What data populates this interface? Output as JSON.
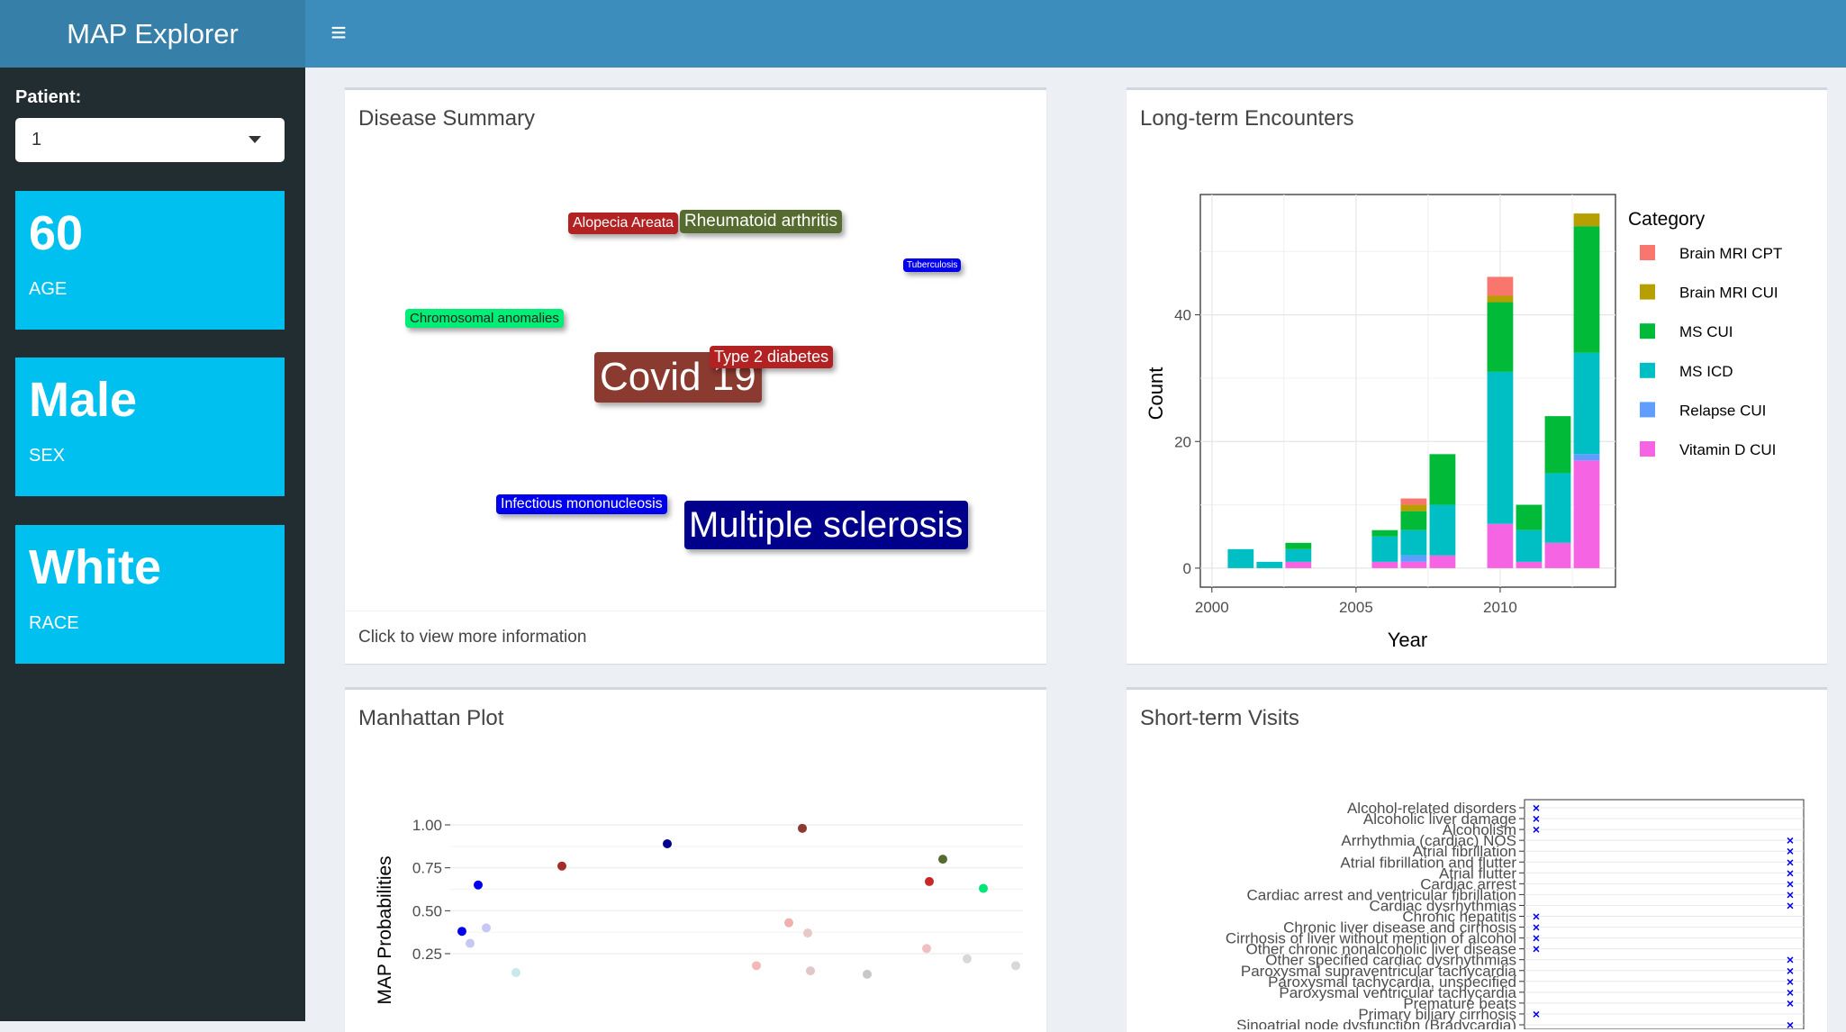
{
  "app": {
    "title": "MAP Explorer"
  },
  "sidebar": {
    "patient_label": "Patient:",
    "patient_value": "1",
    "infoboxes": [
      {
        "value": "60",
        "label": "AGE"
      },
      {
        "value": "Male",
        "label": "SEX"
      },
      {
        "value": "White",
        "label": "RACE"
      }
    ]
  },
  "disease_summary": {
    "title": "Disease Summary",
    "footer": "Click to view more information",
    "labels": [
      {
        "text": "Alopecia Areata",
        "color": "#b22222"
      },
      {
        "text": "Rheumatoid arthritis",
        "color": "#556b2f"
      },
      {
        "text": "Tuberculosis",
        "color": "#0000ee"
      },
      {
        "text": "Chromosomal anomalies",
        "color": "#00ee76"
      },
      {
        "text": "Covid 19",
        "color": "#8b3a2f"
      },
      {
        "text": "Type 2 diabetes",
        "color": "#b22222"
      },
      {
        "text": "Infectious mononucleosis",
        "color": "#0000ee"
      },
      {
        "text": "Multiple sclerosis",
        "color": "#00008b"
      }
    ]
  },
  "long_term": {
    "title": "Long-term Encounters",
    "chart_data": {
      "type": "bar",
      "stacked": true,
      "xlabel": "Year",
      "ylabel": "Count",
      "xlim": [
        1999.6,
        2014
      ],
      "ylim": [
        -3,
        59
      ],
      "x_ticks": [
        "2000",
        "2005",
        "2010"
      ],
      "y_ticks": [
        "0",
        "20",
        "40"
      ],
      "grid": true,
      "legend": {
        "title": "Category",
        "position": "right"
      },
      "series": [
        {
          "name": "Brain MRI CPT",
          "color": "#f8766d",
          "points": [
            [
              2007,
              1
            ],
            [
              2010,
              3
            ]
          ]
        },
        {
          "name": "Brain MRI CUI",
          "color": "#b79f00",
          "points": [
            [
              2007,
              1
            ],
            [
              2010,
              1
            ],
            [
              2013,
              2
            ]
          ]
        },
        {
          "name": "MS CUI",
          "color": "#00ba38",
          "points": [
            [
              2003,
              1
            ],
            [
              2006,
              1
            ],
            [
              2007,
              3
            ],
            [
              2008,
              8
            ],
            [
              2010,
              11
            ],
            [
              2011,
              4
            ],
            [
              2012,
              9
            ],
            [
              2013,
              20
            ]
          ]
        },
        {
          "name": "MS ICD",
          "color": "#00bfc4",
          "points": [
            [
              2001,
              3
            ],
            [
              2002,
              1
            ],
            [
              2003,
              2
            ],
            [
              2006,
              4
            ],
            [
              2007,
              4
            ],
            [
              2008,
              8
            ],
            [
              2010,
              24
            ],
            [
              2011,
              5
            ],
            [
              2012,
              11
            ],
            [
              2013,
              16
            ]
          ]
        },
        {
          "name": "Relapse CUI",
          "color": "#619cff",
          "points": [
            [
              2007,
              1
            ],
            [
              2013,
              1
            ]
          ]
        },
        {
          "name": "Vitamin D CUI",
          "color": "#f564e3",
          "points": [
            [
              2003,
              1
            ],
            [
              2006,
              1
            ],
            [
              2007,
              1
            ],
            [
              2008,
              2
            ],
            [
              2010,
              7
            ],
            [
              2011,
              1
            ],
            [
              2012,
              4
            ],
            [
              2013,
              17
            ]
          ]
        }
      ]
    }
  },
  "manhattan": {
    "title": "Manhattan Plot",
    "chart_data": {
      "type": "scatter",
      "ylabel": "MAP Probabilities",
      "y_ticks": [
        "0.25",
        "0.50",
        "0.75",
        "1.00"
      ],
      "ylim": [
        0.15,
        1.05
      ],
      "grid": true,
      "points": [
        {
          "x": 1,
          "y": 0.38,
          "color": "#0000ee"
        },
        {
          "x": 1.6,
          "y": 0.65,
          "color": "#0000ee"
        },
        {
          "x": 1.9,
          "y": 0.4,
          "color": "#c7c7f5"
        },
        {
          "x": 1.3,
          "y": 0.31,
          "color": "#c7c7f5"
        },
        {
          "x": 3.0,
          "y": 0.14,
          "color": "#c8e8ec"
        },
        {
          "x": 4.7,
          "y": 0.76,
          "color": "#a52a2a"
        },
        {
          "x": 8.6,
          "y": 0.89,
          "color": "#00008b"
        },
        {
          "x": 11.9,
          "y": 0.18,
          "color": "#f5b8b8"
        },
        {
          "x": 13.1,
          "y": 0.43,
          "color": "#f0b0b0"
        },
        {
          "x": 13.6,
          "y": 0.98,
          "color": "#8b3a2f"
        },
        {
          "x": 13.8,
          "y": 0.37,
          "color": "#e8c8c8"
        },
        {
          "x": 13.9,
          "y": 0.15,
          "color": "#e0c8c8"
        },
        {
          "x": 16.0,
          "y": 0.13,
          "color": "#c8c8c8"
        },
        {
          "x": 18.3,
          "y": 0.67,
          "color": "#c62828"
        },
        {
          "x": 18.2,
          "y": 0.28,
          "color": "#f0c0c0"
        },
        {
          "x": 18.8,
          "y": 0.8,
          "color": "#556b2f"
        },
        {
          "x": 19.7,
          "y": 0.22,
          "color": "#d8d8d8"
        },
        {
          "x": 20.3,
          "y": 0.63,
          "color": "#00e676"
        },
        {
          "x": 21.5,
          "y": 0.18,
          "color": "#d8d8d8"
        }
      ]
    }
  },
  "short_term": {
    "title": "Short-term Visits",
    "chart_data": {
      "type": "scatter",
      "marker": "x",
      "categories": [
        "Alcohol-related disorders",
        "Alcoholic liver damage",
        "Alcoholism",
        "Arrhythmia (cardiac) NOS",
        "Atrial fibrillation",
        "Atrial fibrillation and flutter",
        "Atrial flutter",
        "Cardiac arrest",
        "Cardiac arrest and ventricular fibrillation",
        "Cardiac dysrhythmias",
        "Chronic hepatitis",
        "Chronic liver disease and cirrhosis",
        "Cirrhosis of liver without mention of alcohol",
        "Other chronic nonalcoholic liver disease",
        "Other specified cardiac dysrhythmias",
        "Paroxysmal supraventricular tachycardia",
        "Paroxysmal tachycardia, unspecified",
        "Paroxysmal ventricular tachycardia",
        "Premature beats",
        "Primary biliary cirrhosis",
        "Sinoatrial node dysfunction (Bradycardia)"
      ],
      "marker_color": "#0000ee",
      "left_column_marks": [
        0,
        1,
        2,
        10,
        11,
        12,
        13,
        19
      ],
      "right_column_marks": [
        3,
        4,
        5,
        6,
        7,
        8,
        9,
        14,
        15,
        16,
        17,
        18,
        20
      ]
    }
  }
}
